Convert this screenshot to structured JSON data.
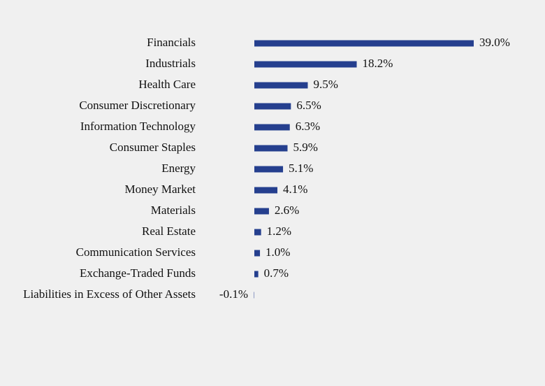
{
  "chart_data": {
    "type": "bar",
    "orientation": "horizontal",
    "color": "#253f8e",
    "categories": [
      "Financials",
      "Industrials",
      "Health Care",
      "Consumer Discretionary",
      "Information Technology",
      "Consumer Staples",
      "Energy",
      "Money Market",
      "Materials",
      "Real Estate",
      "Communication Services",
      "Exchange-Traded Funds",
      "Liabilities in Excess of Other Assets"
    ],
    "values": [
      39.0,
      18.2,
      9.5,
      6.5,
      6.3,
      5.9,
      5.1,
      4.1,
      2.6,
      1.2,
      1.0,
      0.7,
      -0.1
    ],
    "value_labels": [
      "39.0%",
      "18.2%",
      "9.5%",
      "6.5%",
      "6.3%",
      "5.9%",
      "5.1%",
      "4.1%",
      "2.6%",
      "1.2%",
      "1.0%",
      "0.7%",
      "-0.1%"
    ]
  }
}
